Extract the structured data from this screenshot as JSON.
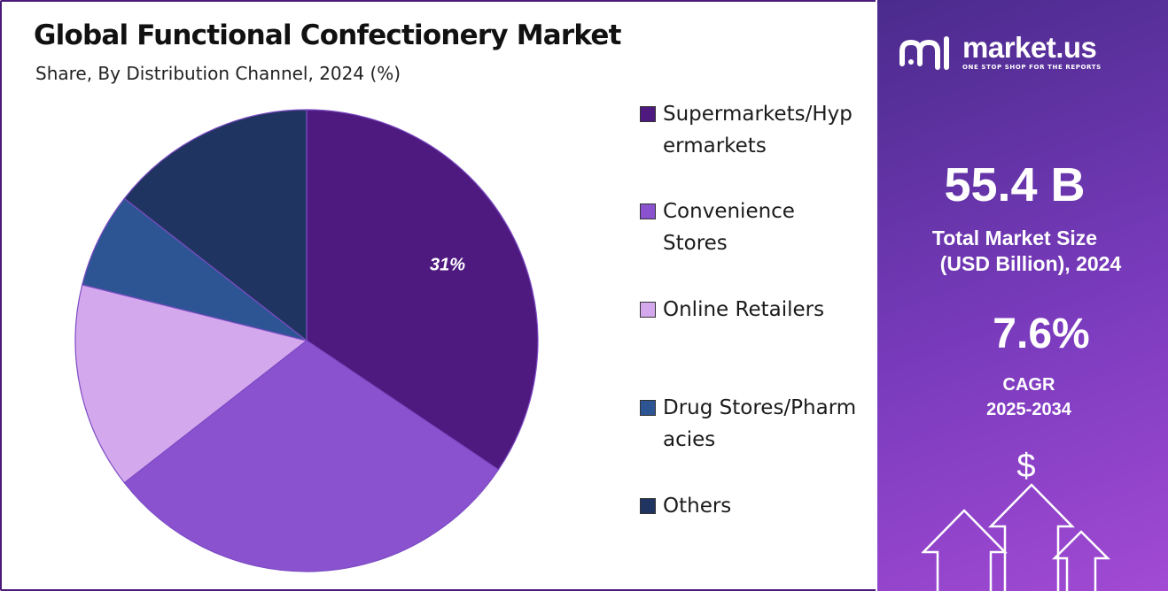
{
  "title": "Global Functional Confectionery Market",
  "subtitle": "Share, By Distribution Channel, 2024 (%)",
  "chart_data": {
    "type": "pie",
    "categories": [
      "Supermarkets/Hypermarkets",
      "Convenience Stores",
      "Online Retailers",
      "Drug Stores/Pharmacies",
      "Others"
    ],
    "values": [
      31,
      27,
      13,
      6,
      13
    ],
    "colors": [
      "#4f1a80",
      "#8a52cf",
      "#d4a8ec",
      "#2d5594",
      "#1f3460"
    ],
    "data_labels": [
      "31%",
      "",
      "",
      "",
      ""
    ],
    "legend_position": "right"
  },
  "legend": [
    {
      "label": "Supermarkets/Hypermarkets",
      "color": "#4f1a80"
    },
    {
      "label": "Convenience Stores",
      "color": "#8a52cf"
    },
    {
      "label": "Online Retailers",
      "color": "#d4a8ec"
    },
    {
      "label": "Drug Stores/Pharmacies",
      "color": "#2d5594"
    },
    {
      "label": "Others",
      "color": "#1f3460"
    }
  ],
  "side_panel": {
    "brand_name": "market.us",
    "brand_tagline": "ONE STOP SHOP FOR THE REPORTS",
    "market_size_value": "55.4 B",
    "market_size_label_1": "Total Market Size",
    "market_size_label_2": "(USD Billion), 2024",
    "cagr_value": "7.6%",
    "cagr_label": "CAGR",
    "cagr_period": "2025-2034",
    "dollar_symbol": "$"
  }
}
